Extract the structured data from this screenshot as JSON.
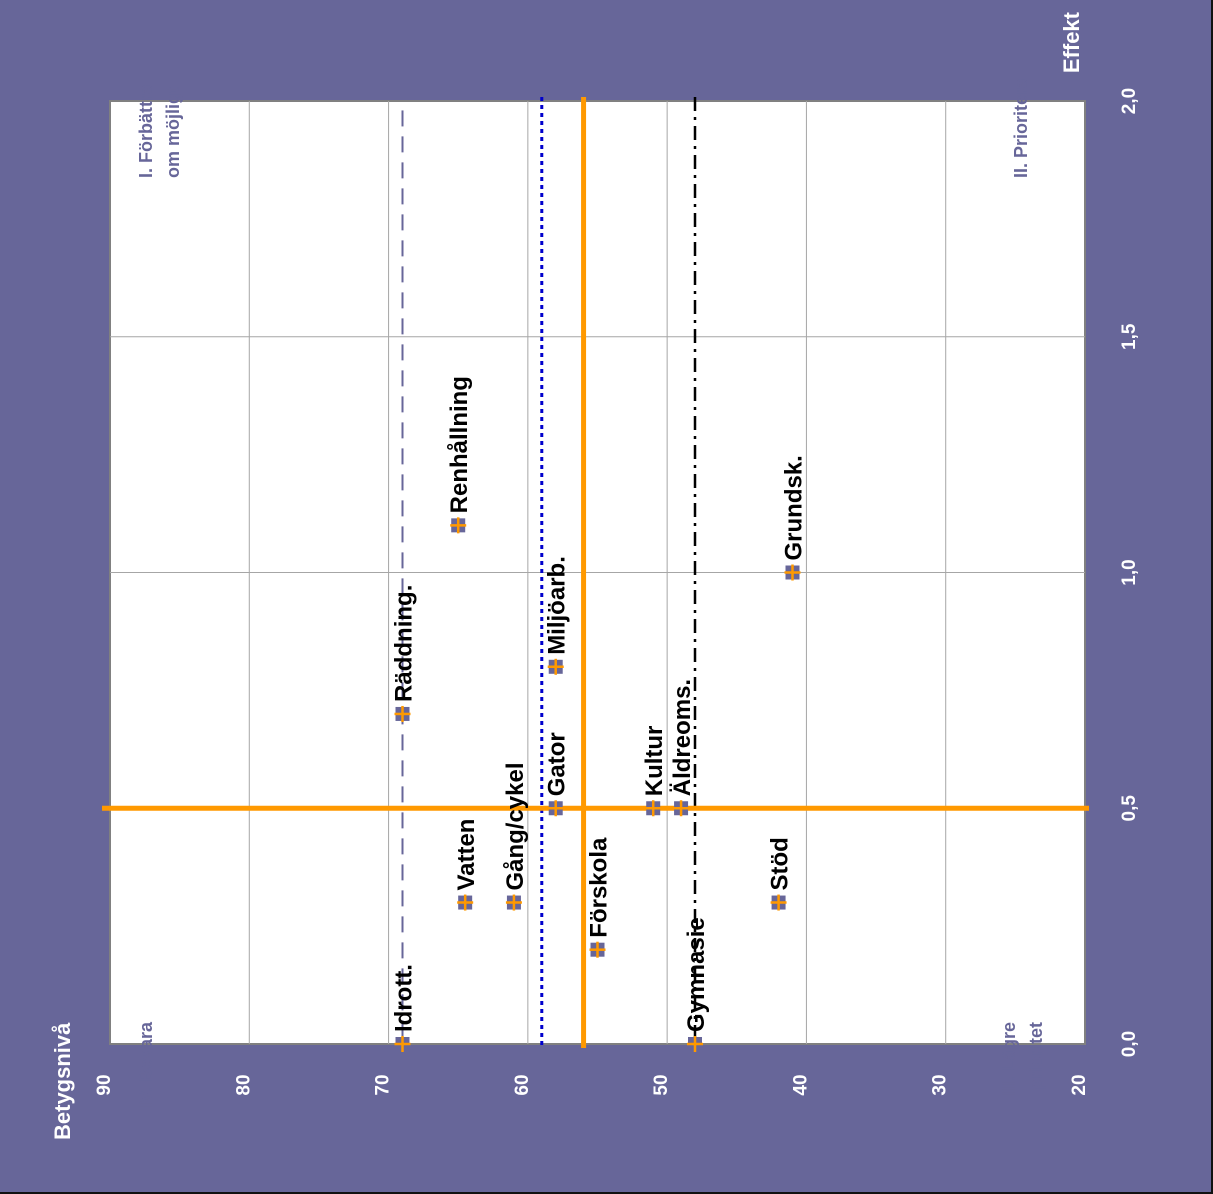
{
  "chart_data": {
    "type": "scatter",
    "title": "",
    "xlabel": "Effekt",
    "ylabel": "Betygsnivå",
    "xlim": [
      0,
      2
    ],
    "ylim": [
      20,
      90
    ],
    "x_ticks": [
      "0,0",
      "0,5",
      "1,0",
      "1,5",
      "2,0"
    ],
    "y_ticks": [
      "20",
      "30",
      "40",
      "50",
      "60",
      "70",
      "80",
      "90"
    ],
    "grid": true,
    "orientation": "rotated-90",
    "reference_lines": {
      "x_threshold": 0.5,
      "y_threshold": 56,
      "dashed_y": 69,
      "dotted_y": 59,
      "dashdot_y": 48
    },
    "quadrants": [
      {
        "key": "q1",
        "lines": [
          "I. Förbättra",
          "om möjligt"
        ]
      },
      {
        "key": "q2",
        "lines": [
          "II. Prioritera"
        ]
      },
      {
        "key": "q3",
        "lines": [
          "III. Lägre",
          "prioritet"
        ]
      },
      {
        "key": "q4",
        "lines": [
          "IV. Bevara"
        ]
      }
    ],
    "points": [
      {
        "label": "Idrott.",
        "x": 0.0,
        "y": 69
      },
      {
        "label": "Gymnasie",
        "x": 0.0,
        "y": 48
      },
      {
        "label": "Förskola",
        "x": 0.2,
        "y": 55
      },
      {
        "label": "Vatten",
        "x": 0.3,
        "y": 64.5
      },
      {
        "label": "Gång/cykel",
        "x": 0.3,
        "y": 61
      },
      {
        "label": "Stöd",
        "x": 0.3,
        "y": 42
      },
      {
        "label": "Gator",
        "x": 0.5,
        "y": 58
      },
      {
        "label": "Kultur",
        "x": 0.5,
        "y": 51
      },
      {
        "label": "Äldreoms.",
        "x": 0.5,
        "y": 49
      },
      {
        "label": "Räddning.",
        "x": 0.7,
        "y": 69
      },
      {
        "label": "Miljöarb.",
        "x": 0.8,
        "y": 58
      },
      {
        "label": "Grundsk.",
        "x": 1.0,
        "y": 41
      },
      {
        "label": "Renhållning",
        "x": 1.1,
        "y": 65
      }
    ],
    "colors": {
      "background": "#676699",
      "plot": "#ffffff",
      "grid": "#a6a6a6",
      "threshold": "#ff9900",
      "dashed": "#676699",
      "dotted": "#0000cc",
      "dashdot": "#000000",
      "marker_fill": "#676699",
      "marker_cross": "#ff9900"
    }
  }
}
